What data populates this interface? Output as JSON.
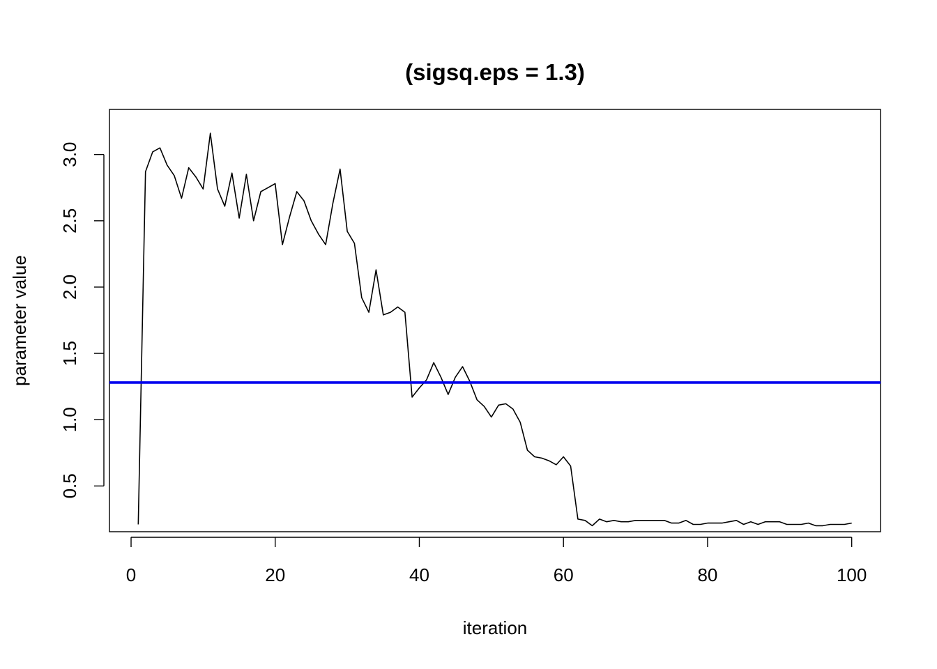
{
  "chart_data": {
    "type": "line",
    "title": "(sigsq.eps = 1.3)",
    "xlabel": "iteration",
    "ylabel": "parameter value",
    "xlim": [
      -3.0,
      104.0
    ],
    "ylim": [
      0.155,
      3.34
    ],
    "xticks": [
      0,
      20,
      40,
      60,
      80,
      100
    ],
    "yticks": [
      0.5,
      1.0,
      1.5,
      2.0,
      2.5,
      3.0
    ],
    "xtick_labels": [
      "0",
      "20",
      "40",
      "60",
      "80",
      "100"
    ],
    "ytick_labels": [
      "0.5",
      "1.0",
      "1.5",
      "2.0",
      "2.5",
      "3.0"
    ],
    "grid": false,
    "legend": "none",
    "series": [
      {
        "color": "#000000",
        "x": [
          1,
          2,
          3,
          4,
          5,
          6,
          7,
          8,
          9,
          10,
          11,
          12,
          13,
          14,
          15,
          16,
          17,
          18,
          19,
          20,
          21,
          22,
          23,
          24,
          25,
          26,
          27,
          28,
          29,
          30,
          31,
          32,
          33,
          34,
          35,
          36,
          37,
          38,
          39,
          40,
          41,
          42,
          43,
          44,
          45,
          46,
          47,
          48,
          49,
          50,
          51,
          52,
          53,
          54,
          55,
          56,
          57,
          58,
          59,
          60,
          61,
          62,
          63,
          64,
          65,
          66,
          67,
          68,
          69,
          70,
          71,
          72,
          73,
          74,
          75,
          76,
          77,
          78,
          79,
          80,
          81,
          82,
          83,
          84,
          85,
          86,
          87,
          88,
          89,
          90,
          91,
          92,
          93,
          94,
          95,
          96,
          97,
          98,
          99,
          100
        ],
        "values": [
          0.21,
          2.87,
          3.02,
          3.05,
          2.92,
          2.84,
          2.67,
          2.9,
          2.83,
          2.74,
          3.16,
          2.74,
          2.61,
          2.86,
          2.52,
          2.85,
          2.5,
          2.72,
          2.75,
          2.78,
          2.32,
          2.53,
          2.72,
          2.65,
          2.5,
          2.4,
          2.32,
          2.63,
          2.89,
          2.42,
          2.33,
          1.92,
          1.81,
          2.13,
          1.79,
          1.81,
          1.85,
          1.81,
          1.17,
          1.24,
          1.3,
          1.43,
          1.32,
          1.19,
          1.32,
          1.4,
          1.29,
          1.15,
          1.1,
          1.02,
          1.11,
          1.12,
          1.08,
          0.98,
          0.77,
          0.72,
          0.71,
          0.69,
          0.66,
          0.72,
          0.65,
          0.25,
          0.24,
          0.2,
          0.25,
          0.23,
          0.24,
          0.23,
          0.23,
          0.24,
          0.24,
          0.24,
          0.24,
          0.24,
          0.22,
          0.22,
          0.24,
          0.21,
          0.21,
          0.22,
          0.22,
          0.22,
          0.23,
          0.24,
          0.21,
          0.23,
          0.21,
          0.23,
          0.23,
          0.23,
          0.21,
          0.21,
          0.21,
          0.22,
          0.2,
          0.2,
          0.21,
          0.21,
          0.21,
          0.22
        ]
      }
    ],
    "reference_line": {
      "orientation": "horizontal",
      "y": 1.28,
      "color": "#0000ee"
    }
  }
}
